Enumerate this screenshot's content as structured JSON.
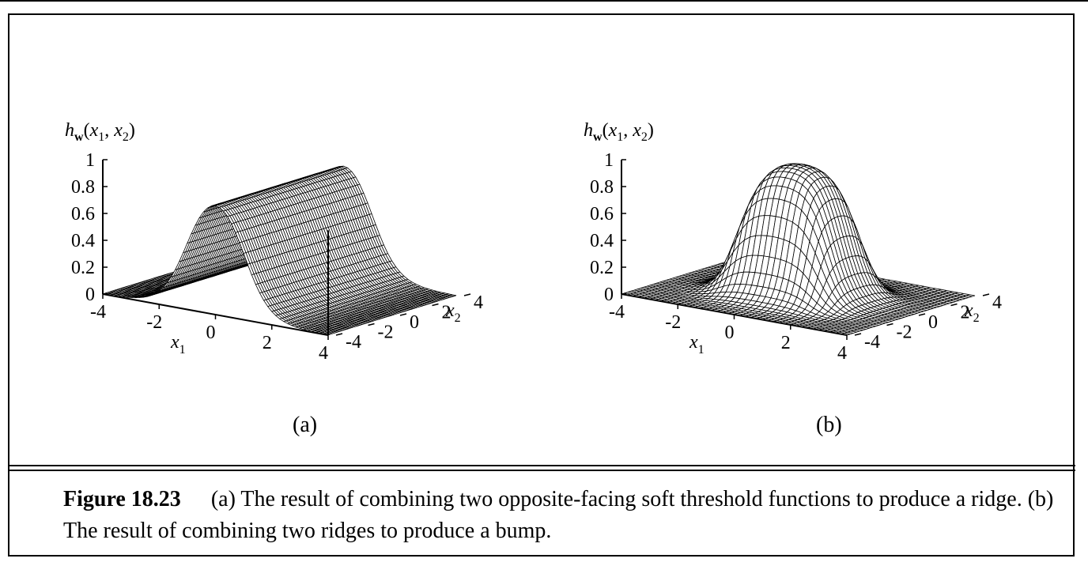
{
  "figure": {
    "number_label": "Figure 18.23",
    "caption": "(a) The result of combining two opposite-facing soft threshold functions to produce a ridge. (b) The result of combining two ridges to produce a bump."
  },
  "panels": [
    {
      "sub_label": "(a)",
      "z_label": "h_w(x1, x2)",
      "z_ticks": [
        "1",
        "0.8",
        "0.6",
        "0.4",
        "0.2",
        "0"
      ],
      "x1_ticks": [
        "-4",
        "-2",
        "0",
        "2",
        "4"
      ],
      "x2_ticks": [
        "-4",
        "-2",
        "0",
        "2",
        "4"
      ],
      "x1_label": "x1",
      "x2_label": "x2"
    },
    {
      "sub_label": "(b)",
      "z_label": "h_w(x1, x2)",
      "z_ticks": [
        "1",
        "0.8",
        "0.6",
        "0.4",
        "0.2",
        "0"
      ],
      "x1_ticks": [
        "-4",
        "-2",
        "0",
        "2",
        "4"
      ],
      "x2_ticks": [
        "-4",
        "-2",
        "0",
        "2",
        "4"
      ],
      "x1_label": "x1",
      "x2_label": "x2"
    }
  ],
  "chart_data": [
    {
      "type": "surface",
      "x1_range": [
        -4,
        4
      ],
      "x2_range": [
        -4,
        4
      ],
      "z_range": [
        0,
        1
      ],
      "z_ticks": [
        0,
        0.2,
        0.4,
        0.6,
        0.8,
        1
      ],
      "x1_ticks": [
        -4,
        -2,
        0,
        2,
        4
      ],
      "x2_ticks": [
        -4,
        -2,
        0,
        2,
        4
      ],
      "shape": "ridge"
    },
    {
      "type": "surface",
      "x1_range": [
        -4,
        4
      ],
      "x2_range": [
        -4,
        4
      ],
      "z_range": [
        0,
        1
      ],
      "z_ticks": [
        0,
        0.2,
        0.4,
        0.6,
        0.8,
        1
      ],
      "x1_ticks": [
        -4,
        -2,
        0,
        2,
        4
      ],
      "x2_ticks": [
        -4,
        -2,
        0,
        2,
        4
      ],
      "shape": "bump"
    }
  ]
}
